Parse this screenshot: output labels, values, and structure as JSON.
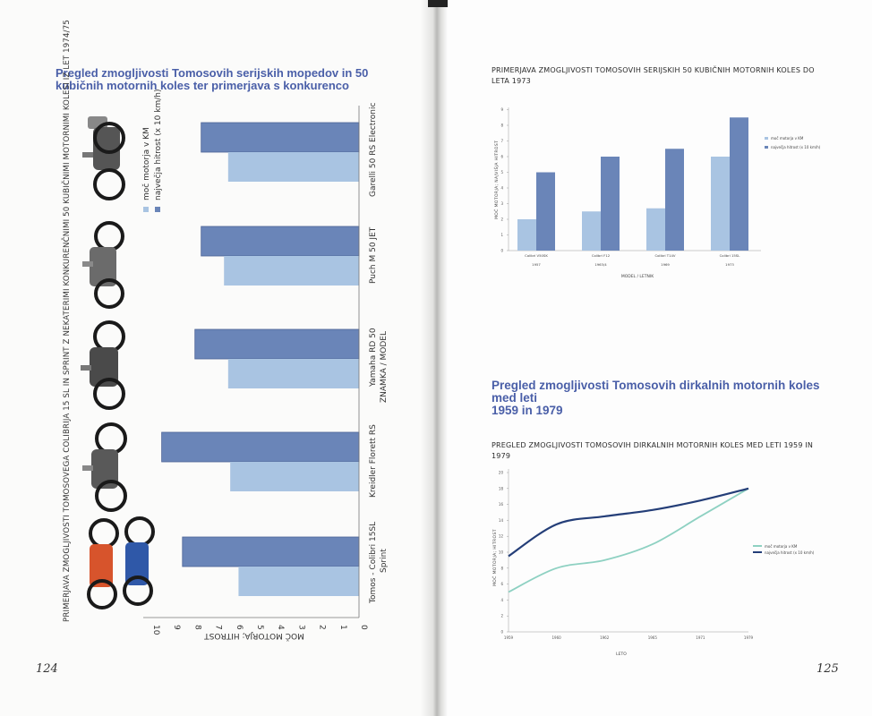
{
  "left_page": {
    "heading": "Pregled zmogljivosti Tomosovih serijskih mopedov in 50 kubičnih motornih koles ter primerjava s konkurenco",
    "chart_title": "PRIMERJAVA ZMOGLJIVOSTI TOMOSOVEGA COLIBRIJA 15 SL IN SPRINT Z NEKATERIMI KONKURENČNIMI 50 KUBIČNIMI MOTORNIMI KOLESI IZ LET 1974/75",
    "page_number": "124"
  },
  "right_page": {
    "chart1_title_line1": "PRIMERJAVA ZMOGLJIVOSTI TOMOSOVIH SERIJSKIH 50 KUBIČNIH MOTORNIH KOLES DO",
    "chart1_title_line2": "LETA 1973",
    "section_heading_line1": "Pregled zmogljivosti Tomosovih dirkalnih motornih koles med leti",
    "section_heading_line2": "1959 in 1979",
    "chart2_title_line1": "PREGLED ZMOGLJIVOSTI TOMOSOVIH DIRKALNIH MOTORNIH KOLES MED LETI 1959 IN",
    "chart2_title_line2": "1979",
    "page_number": "125"
  },
  "colors": {
    "power": "#a9c4e2",
    "speed": "#6a85b8",
    "heading": "#4a5fa8",
    "line_power": "#8ed1c2",
    "line_speed": "#243e78"
  },
  "chart_data": [
    {
      "type": "bar",
      "orientation": "horizontal",
      "rotated": true,
      "categories": [
        "Tomos - Colibri 15SL Sprint",
        "Kreidler Florett RS",
        "Yamaha RD 50",
        "Puch M 50 JET",
        "Garelli 50 RS Electronic"
      ],
      "series": [
        {
          "name": "moč motorja v KM",
          "values": [
            5.8,
            6.2,
            6.3,
            6.5,
            6.3
          ]
        },
        {
          "name": "največja hitrost (x 10 km/h)",
          "values": [
            8.5,
            9.5,
            7.9,
            7.6,
            7.6
          ]
        }
      ],
      "xlabel": "ZNAMKA / MODEL",
      "ylabel": "MOČ MOTORJA; HITROST",
      "ylim": [
        0,
        10
      ],
      "ticks": [
        "0",
        "1",
        "2",
        "3",
        "4",
        "5",
        "6",
        "7",
        "8",
        "9",
        "10"
      ]
    },
    {
      "type": "bar",
      "categories": [
        "Colibri V50SK",
        "Colibri F12",
        "Colibri T14V",
        "Colibri 15SL"
      ],
      "years": [
        "1957",
        "1963/4",
        "1969",
        "1973"
      ],
      "series": [
        {
          "name": "moč motorja v KM",
          "values": [
            2,
            2.5,
            2.7,
            6
          ]
        },
        {
          "name": "največja hitrost (x 10 km/h)",
          "values": [
            5,
            6,
            6.5,
            8.5
          ]
        }
      ],
      "xlabel": "MODEL / LETNIK",
      "ylabel": "MOČ MOTORJA; NAJVIŠJA HITROST",
      "ylim": [
        0,
        9
      ],
      "ticks": [
        "0",
        "1",
        "2",
        "3",
        "4",
        "5",
        "6",
        "7",
        "8",
        "9"
      ]
    },
    {
      "type": "line",
      "x": [
        "1959",
        "1960",
        "1962",
        "1965",
        "1971",
        "1979"
      ],
      "series": [
        {
          "name": "moč motorja v KM",
          "values": [
            5,
            8,
            9,
            11,
            14.5,
            18
          ]
        },
        {
          "name": "največja hitrost (x 10 km/h)",
          "values": [
            9.5,
            13.5,
            14.5,
            15.3,
            16.5,
            18
          ]
        }
      ],
      "xlabel": "LETO",
      "ylabel": "MOČ MOTORJA; HITROST",
      "ylim": [
        0,
        20
      ],
      "ticks": [
        "0",
        "2",
        "4",
        "6",
        "8",
        "10",
        "12",
        "14",
        "16",
        "18",
        "20"
      ]
    }
  ]
}
